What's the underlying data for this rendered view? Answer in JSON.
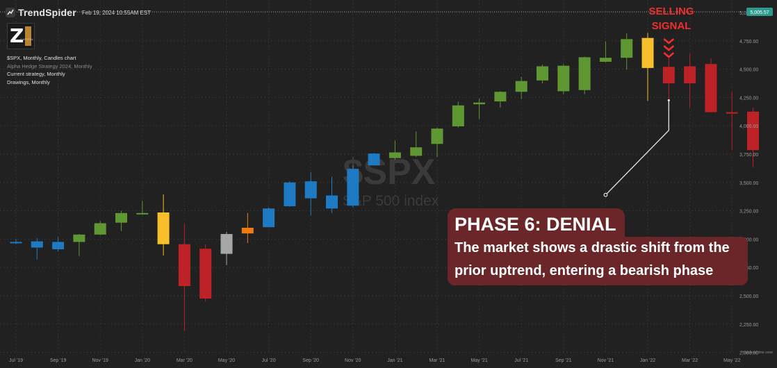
{
  "header": {
    "brand": "TrendSpider",
    "timestamp": "Feb 19, 2024 10:55AM EST"
  },
  "logo": {
    "letter": "Z",
    "caption": "CAPITAL"
  },
  "legend": {
    "lines": [
      "$SPX, Monthly, Candles chart",
      "Alpha Hedge Strategy 2024, Monthly",
      "Current strategy, Monthly",
      "Drawings, Monthly"
    ]
  },
  "colors": {
    "background": "#212121",
    "green": "#5f9732",
    "blue": "#1f7ac4",
    "yellow": "#f6bf2b",
    "orange": "#f07c14",
    "gray": "#a6a6a6",
    "red": "#bd2226",
    "signal": "#ef2f2f",
    "callout": "#6a2628",
    "last_price_badge": "#2c9a8c"
  },
  "annotation": {
    "signal_line1": "SELLING",
    "signal_line2": "SIGNAL",
    "arrow_icon": "chevron-down-icon",
    "phase_title": "PHASE 6: DENIAL",
    "phase_text": "The market shows a drastic shift from the prior uptrend, entering a bearish phase"
  },
  "chart_data": {
    "type": "candlestick",
    "watermark_symbol": "$SPX",
    "watermark_name": "S&P 500 index",
    "y_ticks": [
      5000,
      4750,
      4500,
      4250,
      4000,
      3750,
      3500,
      3250,
      3000,
      2750,
      2500,
      2250,
      2000
    ],
    "y_tick_labels": [
      "5,000.00",
      "4,750.00",
      "4,500.00",
      "4,250.00",
      "4,000.00",
      "3,750.00",
      "3,500.00",
      "3,250.00",
      "3,000.00",
      "2,750.00",
      "2,500.00",
      "2,250.00",
      "2,000.00"
    ],
    "ylim": [
      1985,
      5110
    ],
    "last_price": 5005.57,
    "last_price_label": "5,005.57",
    "x_labels": [
      "Jul '19",
      "Sep '19",
      "Nov '19",
      "Jan '20",
      "Mar '20",
      "May '20",
      "Jul '20",
      "Sep '20",
      "Nov '20",
      "Jan '21",
      "Mar '21",
      "May '21",
      "Jul '21",
      "Sep '21",
      "Nov '21",
      "Jan '22",
      "Mar '22",
      "May '22"
    ],
    "x_label_index": [
      0,
      2,
      4,
      6,
      8,
      10,
      12,
      14,
      16,
      18,
      20,
      22,
      24,
      26,
      28,
      30,
      32,
      34
    ],
    "footer_note": "Your local time zone",
    "candles": [
      {
        "m": "Jul '19",
        "o": 2965,
        "h": 3000,
        "l": 2955,
        "c": 2975,
        "col": "blue"
      },
      {
        "m": "Aug '19",
        "o": 2980,
        "h": 3010,
        "l": 2820,
        "c": 2925,
        "col": "blue"
      },
      {
        "m": "Sep '19",
        "o": 2910,
        "h": 3020,
        "l": 2890,
        "c": 2975,
        "col": "blue"
      },
      {
        "m": "Oct '19",
        "o": 2975,
        "h": 3045,
        "l": 2850,
        "c": 3040,
        "col": "green"
      },
      {
        "m": "Nov '19",
        "o": 3040,
        "h": 3160,
        "l": 3035,
        "c": 3140,
        "col": "green"
      },
      {
        "m": "Dec '19",
        "o": 3145,
        "h": 3250,
        "l": 3070,
        "c": 3230,
        "col": "green"
      },
      {
        "m": "Jan '20",
        "o": 3225,
        "h": 3340,
        "l": 3215,
        "c": 3230,
        "col": "green"
      },
      {
        "m": "Feb '20",
        "o": 3235,
        "h": 3395,
        "l": 2855,
        "c": 2955,
        "col": "yellow"
      },
      {
        "m": "Mar '20",
        "o": 2955,
        "h": 3135,
        "l": 2190,
        "c": 2585,
        "col": "red"
      },
      {
        "m": "Apr '20",
        "o": 2915,
        "h": 2955,
        "l": 2450,
        "c": 2475,
        "col": "red"
      },
      {
        "m": "May '20",
        "o": 2870,
        "h": 3065,
        "l": 2770,
        "c": 3045,
        "col": "gray"
      },
      {
        "m": "Jun '20",
        "o": 3050,
        "h": 3230,
        "l": 2965,
        "c": 3100,
        "col": "orange"
      },
      {
        "m": "Jul '20",
        "o": 3105,
        "h": 3280,
        "l": 3105,
        "c": 3270,
        "col": "blue"
      },
      {
        "m": "Aug '20",
        "o": 3290,
        "h": 3510,
        "l": 3285,
        "c": 3500,
        "col": "blue"
      },
      {
        "m": "Sep '20",
        "o": 3510,
        "h": 3590,
        "l": 3210,
        "c": 3360,
        "col": "blue"
      },
      {
        "m": "Oct '20",
        "o": 3385,
        "h": 3550,
        "l": 3230,
        "c": 3270,
        "col": "blue"
      },
      {
        "m": "Nov '20",
        "o": 3295,
        "h": 3650,
        "l": 3280,
        "c": 3620,
        "col": "blue"
      },
      {
        "m": "Dec '20",
        "o": 3650,
        "h": 3760,
        "l": 3650,
        "c": 3755,
        "col": "blue"
      },
      {
        "m": "Jan '21",
        "o": 3765,
        "h": 3870,
        "l": 3700,
        "c": 3715,
        "col": "green"
      },
      {
        "m": "Feb '21",
        "o": 3735,
        "h": 3950,
        "l": 3725,
        "c": 3810,
        "col": "green"
      },
      {
        "m": "Mar '21",
        "o": 3840,
        "h": 3985,
        "l": 3725,
        "c": 3975,
        "col": "green"
      },
      {
        "m": "Apr '21",
        "o": 3995,
        "h": 4215,
        "l": 3985,
        "c": 4180,
        "col": "green"
      },
      {
        "m": "May '21",
        "o": 4190,
        "h": 4240,
        "l": 4060,
        "c": 4205,
        "col": "green"
      },
      {
        "m": "Jun '21",
        "o": 4215,
        "h": 4305,
        "l": 4160,
        "c": 4300,
        "col": "green"
      },
      {
        "m": "Jul '21",
        "o": 4300,
        "h": 4430,
        "l": 4235,
        "c": 4395,
        "col": "green"
      },
      {
        "m": "Aug '21",
        "o": 4400,
        "h": 4540,
        "l": 4375,
        "c": 4525,
        "col": "green"
      },
      {
        "m": "Sep '21",
        "o": 4530,
        "h": 4545,
        "l": 4280,
        "c": 4305,
        "col": "green"
      },
      {
        "m": "Oct '21",
        "o": 4315,
        "h": 4610,
        "l": 4280,
        "c": 4605,
        "col": "green"
      },
      {
        "m": "Nov '21",
        "o": 4600,
        "h": 4745,
        "l": 4560,
        "c": 4565,
        "col": "green"
      },
      {
        "m": "Dec '21",
        "o": 4600,
        "h": 4815,
        "l": 4495,
        "c": 4765,
        "col": "green"
      },
      {
        "m": "Jan '22",
        "o": 4775,
        "h": 4820,
        "l": 4220,
        "c": 4510,
        "col": "yellow"
      },
      {
        "m": "Feb '22",
        "o": 4520,
        "h": 4595,
        "l": 4115,
        "c": 4375,
        "col": "red"
      },
      {
        "m": "Mar '22",
        "o": 4525,
        "h": 4635,
        "l": 4160,
        "c": 4375,
        "col": "red"
      },
      {
        "m": "Apr '22",
        "o": 4545,
        "h": 4595,
        "l": 4120,
        "c": 4120,
        "col": "red"
      },
      {
        "m": "May '22",
        "o": 4120,
        "h": 4300,
        "l": 3790,
        "c": 4120,
        "col": "red"
      },
      {
        "m": "Jun '22",
        "o": 4125,
        "h": 4160,
        "l": 3635,
        "c": 3785,
        "col": "red"
      }
    ],
    "drawing_line": [
      {
        "m": "Nov '21",
        "v": 3390
      },
      {
        "m": "Feb '22",
        "v": 3960
      },
      {
        "m": "Feb '22",
        "v": 4225
      }
    ]
  }
}
